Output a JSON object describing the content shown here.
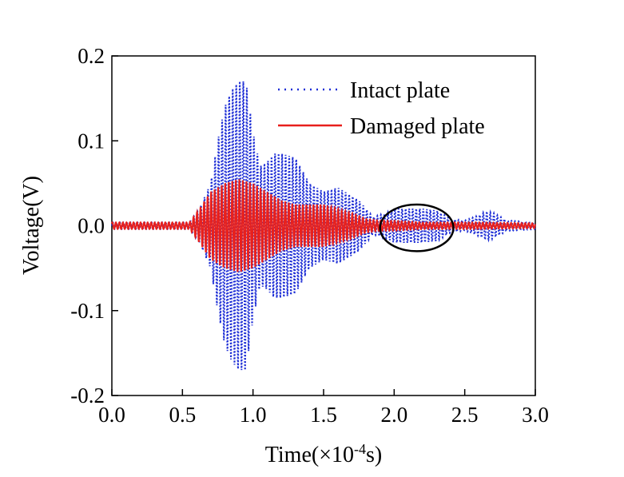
{
  "chart_data": {
    "type": "line",
    "xlabel_prefix": "Time(×10",
    "xlabel_exp": "-4",
    "xlabel_suffix": "s)",
    "ylabel": "Voltage(V)",
    "xlim": [
      0.0,
      3.0
    ],
    "ylim": [
      -0.2,
      0.2
    ],
    "x_ticks": [
      "0.0",
      "0.5",
      "1.0",
      "1.5",
      "2.0",
      "2.5",
      "3.0"
    ],
    "y_ticks": [
      "0.2",
      "0.1",
      "0.0",
      "-0.1",
      "-0.2"
    ],
    "legend_position": "top-right",
    "grid": false,
    "series": [
      {
        "name": "Intact plate",
        "color": "#1f2fd6",
        "style": "dotted",
        "envelope": [
          [
            0.0,
            0.004
          ],
          [
            0.55,
            0.004
          ],
          [
            0.62,
            0.02
          ],
          [
            0.7,
            0.05
          ],
          [
            0.75,
            0.1
          ],
          [
            0.8,
            0.14
          ],
          [
            0.85,
            0.16
          ],
          [
            0.9,
            0.17
          ],
          [
            0.95,
            0.17
          ],
          [
            1.0,
            0.11
          ],
          [
            1.05,
            0.07
          ],
          [
            1.1,
            0.075
          ],
          [
            1.15,
            0.085
          ],
          [
            1.2,
            0.085
          ],
          [
            1.3,
            0.08
          ],
          [
            1.4,
            0.05
          ],
          [
            1.5,
            0.04
          ],
          [
            1.6,
            0.045
          ],
          [
            1.65,
            0.04
          ],
          [
            1.75,
            0.03
          ],
          [
            1.85,
            0.01
          ],
          [
            1.95,
            0.015
          ],
          [
            2.0,
            0.02
          ],
          [
            2.1,
            0.02
          ],
          [
            2.2,
            0.02
          ],
          [
            2.3,
            0.018
          ],
          [
            2.4,
            0.008
          ],
          [
            2.5,
            0.006
          ],
          [
            2.6,
            0.012
          ],
          [
            2.65,
            0.017
          ],
          [
            2.7,
            0.015
          ],
          [
            2.8,
            0.006
          ],
          [
            3.0,
            0.004
          ]
        ]
      },
      {
        "name": "Damaged plate",
        "color": "#e8201c",
        "style": "solid",
        "envelope": [
          [
            0.0,
            0.004
          ],
          [
            0.55,
            0.004
          ],
          [
            0.62,
            0.02
          ],
          [
            0.7,
            0.04
          ],
          [
            0.8,
            0.05
          ],
          [
            0.9,
            0.055
          ],
          [
            1.0,
            0.05
          ],
          [
            1.1,
            0.04
          ],
          [
            1.2,
            0.03
          ],
          [
            1.3,
            0.025
          ],
          [
            1.4,
            0.025
          ],
          [
            1.5,
            0.025
          ],
          [
            1.6,
            0.02
          ],
          [
            1.7,
            0.015
          ],
          [
            1.8,
            0.008
          ],
          [
            1.9,
            0.006
          ],
          [
            2.0,
            0.006
          ],
          [
            2.2,
            0.004
          ],
          [
            2.6,
            0.004
          ],
          [
            3.0,
            0.003
          ]
        ]
      }
    ],
    "annotation": {
      "shape": "ellipse",
      "x_range": [
        1.9,
        2.42
      ],
      "y_range": [
        -0.03,
        0.025
      ]
    }
  }
}
